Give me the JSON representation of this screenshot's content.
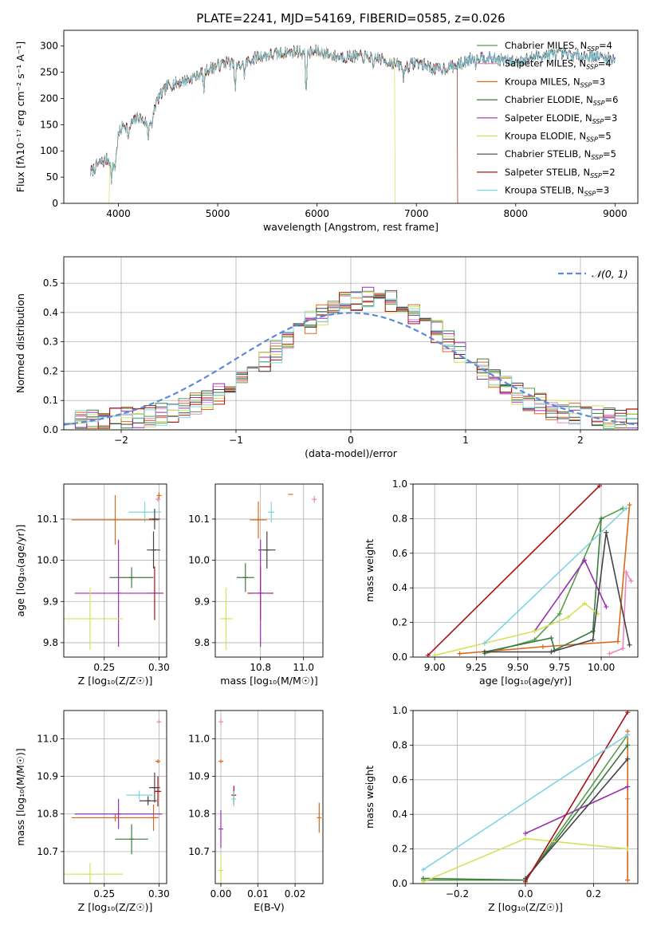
{
  "figure_title": "PLATE=2241, MJD=54169, FIBERID=0585, z=0.026",
  "colors": [
    "#5a9e4a",
    "#e887c0",
    "#d96a1a",
    "#3b7a3f",
    "#9a2fb4",
    "#d6e05a",
    "#444444",
    "#aa1111",
    "#7fd6de"
  ],
  "legend": [
    {
      "name": "Chabrier MILES",
      "n": "4"
    },
    {
      "name": "Salpeter MILES",
      "n": "4"
    },
    {
      "name": "Kroupa MILES",
      "n": "3"
    },
    {
      "name": "Chabrier ELODIE",
      "n": "6"
    },
    {
      "name": "Salpeter ELODIE",
      "n": "3"
    },
    {
      "name": "Kroupa ELODIE",
      "n": "5"
    },
    {
      "name": "Chabrier STELIB",
      "n": "5"
    },
    {
      "name": "Salpeter STELIB",
      "n": "2"
    },
    {
      "name": "Kroupa STELIB",
      "n": "3"
    }
  ],
  "legend_ssp": "SSP",
  "chart_data": [
    {
      "id": "spectrum",
      "type": "line",
      "xlabel": "wavelength [Angstrom, rest frame]",
      "ylabel": "Flux [fλ10⁻¹⁷ erg cm⁻² s⁻¹ A⁻¹]",
      "xlim": [
        3450,
        9230
      ],
      "ylim": [
        0,
        330
      ],
      "xticks": [
        "4000",
        "5000",
        "6000",
        "7000",
        "8000",
        "9000"
      ],
      "yticks": [
        "0",
        "50",
        "100",
        "150",
        "200",
        "250",
        "300"
      ],
      "continuum": {
        "x": [
          3720,
          3800,
          3900,
          3950,
          4000,
          4050,
          4100,
          4200,
          4300,
          4400,
          4500,
          4700,
          4900,
          5100,
          5200,
          5400,
          5600,
          5800,
          5900,
          6000,
          6200,
          6400,
          6600,
          6800,
          6900,
          7000,
          7200,
          7400,
          7600,
          7800,
          8000,
          8200,
          8400,
          8600,
          8800,
          9000
        ],
        "y": [
          60,
          75,
          85,
          70,
          130,
          150,
          145,
          165,
          150,
          200,
          225,
          235,
          255,
          270,
          260,
          280,
          285,
          290,
          285,
          290,
          280,
          280,
          278,
          265,
          260,
          270,
          255,
          262,
          280,
          275,
          270,
          280,
          285,
          282,
          280,
          275
        ]
      },
      "cutoffs": [
        {
          "series": "Kroupa ELODIE",
          "drop_at": 3910,
          "to": "low"
        },
        {
          "series": "Kroupa ELODIE",
          "drop_at": 6780,
          "to": "high"
        },
        {
          "series": "Salpeter STELIB",
          "drop_at": 7410,
          "to": "high"
        }
      ]
    },
    {
      "id": "residuals",
      "type": "step-histogram",
      "xlabel": "(data-model)/error",
      "ylabel": "Normed distribution",
      "xlim": [
        -2.5,
        2.5
      ],
      "ylim": [
        0,
        0.59
      ],
      "xticks": [
        "−2",
        "−1",
        "0",
        "1",
        "2"
      ],
      "yticks": [
        "0.0",
        "0.1",
        "0.2",
        "0.3",
        "0.4",
        "0.5"
      ],
      "normal_label": "𝒩(0, 1)",
      "bin_width": 0.1
    },
    {
      "id": "age-vs-Z",
      "type": "scatter",
      "xlabel": "Z [log₁₀(Z/Z☉)]",
      "ylabel": "age  [log₁₀(age/yr)]",
      "xlim": [
        0.213,
        0.307
      ],
      "ylim": [
        9.765,
        10.185
      ],
      "xticks": [
        "0.25",
        "0.30"
      ],
      "yticks": [
        "9.8",
        "9.9",
        "10.0",
        "10.1"
      ],
      "points": [
        {
          "x": 0.3,
          "y": 10.157,
          "xe": 0.002,
          "ye": 0.008,
          "c": 2
        },
        {
          "x": 0.299,
          "y": 10.148,
          "xe": 0.002,
          "ye": 0.006,
          "c": 1
        },
        {
          "x": 0.287,
          "y": 10.117,
          "xe": 0.015,
          "ye": 0.025,
          "c": 8
        },
        {
          "x": 0.26,
          "y": 10.098,
          "xe": 0.04,
          "ye": 0.06,
          "c": 2
        },
        {
          "x": 0.296,
          "y": 10.1,
          "xe": 0.005,
          "ye": 0.025,
          "c": 6
        },
        {
          "x": 0.295,
          "y": 10.025,
          "xe": 0.006,
          "ye": 0.045,
          "c": 6
        },
        {
          "x": 0.275,
          "y": 9.958,
          "xe": 0.02,
          "ye": 0.025,
          "c": 3
        },
        {
          "x": 0.296,
          "y": 9.92,
          "xe": 0.008,
          "ye": 0.065,
          "c": 7
        },
        {
          "x": 0.263,
          "y": 9.92,
          "xe": 0.04,
          "ye": 0.13,
          "c": 4
        },
        {
          "x": 0.237,
          "y": 9.858,
          "xe": 0.03,
          "ye": 0.075,
          "c": 5
        }
      ]
    },
    {
      "id": "age-vs-mass",
      "type": "scatter",
      "xlabel": "mass [log₁₀(M/M☉)]",
      "ylabel": "",
      "xlim": [
        10.59,
        11.09
      ],
      "ylim": [
        9.765,
        10.185
      ],
      "xticks": [
        "10.8",
        "11.0"
      ],
      "yticks": [
        "9.8",
        "9.9",
        "10.0",
        "10.1"
      ],
      "points": [
        {
          "x": 10.94,
          "y": 10.16,
          "xe": 0.0,
          "ye": 0.0,
          "c": 2
        },
        {
          "x": 11.05,
          "y": 10.148,
          "xe": 0.01,
          "ye": 0.008,
          "c": 1
        },
        {
          "x": 10.85,
          "y": 10.117,
          "xe": 0.015,
          "ye": 0.025,
          "c": 8
        },
        {
          "x": 10.79,
          "y": 10.098,
          "xe": 0.04,
          "ye": 0.045,
          "c": 2
        },
        {
          "x": 10.83,
          "y": 10.025,
          "xe": 0.04,
          "ye": 0.045,
          "c": 6
        },
        {
          "x": 10.73,
          "y": 9.958,
          "xe": 0.04,
          "ye": 0.035,
          "c": 3
        },
        {
          "x": 10.8,
          "y": 9.92,
          "xe": 0.06,
          "ye": 0.065,
          "c": 7
        },
        {
          "x": 10.8,
          "y": 9.92,
          "xe": 0.04,
          "ye": 0.13,
          "c": 4
        },
        {
          "x": 10.64,
          "y": 9.858,
          "xe": 0.03,
          "ye": 0.075,
          "c": 5
        }
      ]
    },
    {
      "id": "weight-vs-age",
      "type": "line",
      "xlabel": "age  [log₁₀(age/yr)]",
      "ylabel": "mass weight",
      "xlim": [
        8.87,
        10.22
      ],
      "ylim": [
        0,
        1
      ],
      "xticks": [
        "9.00",
        "9.25",
        "9.50",
        "9.75",
        "10.00"
      ],
      "yticks": [
        "0.0",
        "0.2",
        "0.4",
        "0.6",
        "0.8",
        "1.0"
      ],
      "series": [
        {
          "c": 0,
          "x": [
            9.3,
            9.6,
            9.75,
            10.0,
            10.13
          ],
          "y": [
            0.02,
            0.1,
            0.25,
            0.8,
            0.86
          ]
        },
        {
          "c": 1,
          "x": [
            10.05,
            10.13,
            10.15,
            10.18
          ],
          "y": [
            0.02,
            0.05,
            0.49,
            0.44
          ]
        },
        {
          "c": 2,
          "x": [
            9.15,
            9.65,
            10.1,
            10.17
          ],
          "y": [
            0.02,
            0.06,
            0.09,
            0.88
          ]
        },
        {
          "c": 3,
          "x": [
            9.3,
            9.7,
            9.72,
            9.95,
            10.0
          ],
          "y": [
            0.03,
            0.11,
            0.04,
            0.15,
            0.8
          ]
        },
        {
          "c": 4,
          "x": [
            9.6,
            9.9,
            10.03
          ],
          "y": [
            0.15,
            0.56,
            0.29
          ]
        },
        {
          "c": 5,
          "x": [
            9.0,
            9.3,
            9.6,
            9.8,
            9.9,
            9.98
          ],
          "y": [
            0.01,
            0.08,
            0.15,
            0.23,
            0.31,
            0.25
          ]
        },
        {
          "c": 6,
          "x": [
            9.3,
            9.7,
            9.95,
            10.03,
            10.17
          ],
          "y": [
            0.03,
            0.03,
            0.1,
            0.72,
            0.07
          ]
        },
        {
          "c": 7,
          "x": [
            8.96,
            9.99
          ],
          "y": [
            0.01,
            0.99
          ]
        },
        {
          "c": 8,
          "x": [
            9.3,
            10.15
          ],
          "y": [
            0.08,
            0.86
          ]
        }
      ]
    },
    {
      "id": "mass-vs-Z",
      "type": "scatter",
      "xlabel": "Z [log₁₀(Z/Z☉)]",
      "ylabel": "mass [log₁₀(M/M☉)]",
      "xlim": [
        0.213,
        0.307
      ],
      "ylim": [
        10.615,
        11.075
      ],
      "xticks": [
        "0.25",
        "0.30"
      ],
      "yticks": [
        "10.7",
        "10.8",
        "10.9",
        "11.0"
      ],
      "points": [
        {
          "x": 0.3,
          "y": 11.045,
          "xe": 0.001,
          "ye": 0.005,
          "c": 1
        },
        {
          "x": 0.299,
          "y": 10.94,
          "xe": 0.002,
          "ye": 0.005,
          "c": 2
        },
        {
          "x": 0.296,
          "y": 10.87,
          "xe": 0.005,
          "ye": 0.04,
          "c": 6
        },
        {
          "x": 0.299,
          "y": 10.86,
          "xe": 0.003,
          "ye": 0.04,
          "c": 7
        },
        {
          "x": 0.282,
          "y": 10.85,
          "xe": 0.012,
          "ye": 0.012,
          "c": 8
        },
        {
          "x": 0.29,
          "y": 10.835,
          "xe": 0.008,
          "ye": 0.012,
          "c": 6
        },
        {
          "x": 0.26,
          "y": 10.79,
          "xe": 0.04,
          "ye": 0.01,
          "c": 2
        },
        {
          "x": 0.295,
          "y": 10.79,
          "xe": 0.004,
          "ye": 0.035,
          "c": 2
        },
        {
          "x": 0.263,
          "y": 10.8,
          "xe": 0.04,
          "ye": 0.04,
          "c": 4
        },
        {
          "x": 0.275,
          "y": 10.733,
          "xe": 0.015,
          "ye": 0.04,
          "c": 3
        },
        {
          "x": 0.237,
          "y": 10.64,
          "xe": 0.03,
          "ye": 0.03,
          "c": 5
        }
      ]
    },
    {
      "id": "mass-vs-ebv",
      "type": "scatter",
      "xlabel": "E(B-V)",
      "ylabel": "",
      "xlim": [
        -0.0015,
        0.0275
      ],
      "ylim": [
        10.615,
        11.075
      ],
      "xticks": [
        "0.00",
        "0.01",
        "0.02"
      ],
      "yticks": [
        "10.7",
        "10.8",
        "10.9",
        "11.0"
      ],
      "points": [
        {
          "x": 0.0,
          "y": 11.045,
          "xe": 0.0,
          "ye": 0.008,
          "c": 1
        },
        {
          "x": 0.0,
          "y": 10.94,
          "xe": 0.0,
          "ye": 0.005,
          "c": 2
        },
        {
          "x": 0.0,
          "y": 10.76,
          "xe": 0.0,
          "ye": 0.05,
          "c": 4
        },
        {
          "x": 0.0,
          "y": 10.65,
          "xe": 0.0,
          "ye": 0.04,
          "c": 5
        },
        {
          "x": 0.0035,
          "y": 10.85,
          "xe": 0.0,
          "ye": 0.025,
          "c": 7
        },
        {
          "x": 0.0035,
          "y": 10.84,
          "xe": 0.0,
          "ye": 0.02,
          "c": 8
        },
        {
          "x": 0.0265,
          "y": 10.79,
          "xe": 0.0,
          "ye": 0.04,
          "c": 2
        }
      ]
    },
    {
      "id": "weight-vs-Z",
      "type": "line",
      "xlabel": "Z [log₁₀(Z/Z☉)]",
      "ylabel": "mass weight",
      "xlim": [
        -0.33,
        0.33
      ],
      "ylim": [
        0,
        1
      ],
      "xticks": [
        "−0.2",
        "0.0",
        "0.2"
      ],
      "yticks": [
        "0.0",
        "0.2",
        "0.4",
        "0.6",
        "0.8",
        "1.0"
      ],
      "series": [
        {
          "c": 0,
          "x": [
            -0.3,
            0.0,
            0.3
          ],
          "y": [
            0.02,
            0.02,
            0.86
          ]
        },
        {
          "c": 1,
          "x": [
            0.3,
            0.3
          ],
          "y": [
            0.02,
            0.49
          ]
        },
        {
          "c": 2,
          "x": [
            0.3,
            0.3
          ],
          "y": [
            0.02,
            0.88
          ]
        },
        {
          "c": 3,
          "x": [
            -0.3,
            0.0,
            0.3
          ],
          "y": [
            0.03,
            0.02,
            0.8
          ]
        },
        {
          "c": 4,
          "x": [
            0.0,
            0.3
          ],
          "y": [
            0.29,
            0.56
          ]
        },
        {
          "c": 5,
          "x": [
            -0.3,
            0.0,
            0.3
          ],
          "y": [
            0.01,
            0.26,
            0.2
          ]
        },
        {
          "c": 6,
          "x": [
            0.0,
            0.3
          ],
          "y": [
            0.03,
            0.72
          ]
        },
        {
          "c": 7,
          "x": [
            0.0,
            0.3
          ],
          "y": [
            0.01,
            0.99
          ]
        },
        {
          "c": 8,
          "x": [
            -0.3,
            0.3
          ],
          "y": [
            0.08,
            0.86
          ]
        }
      ]
    }
  ]
}
